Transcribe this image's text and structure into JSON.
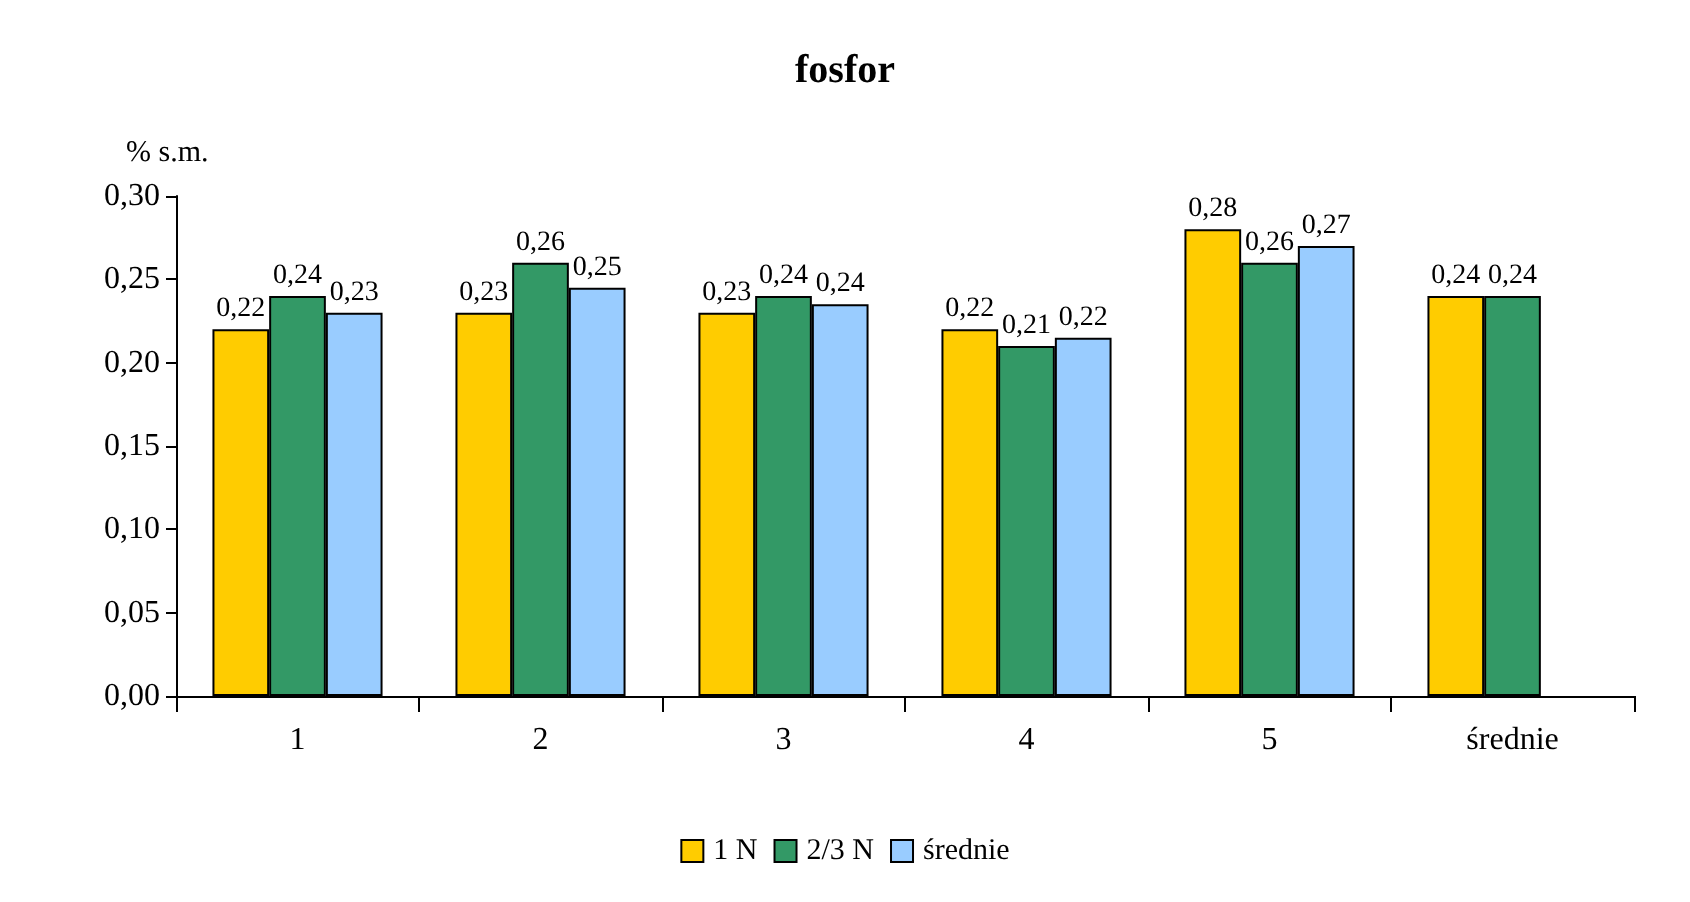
{
  "chart_data": {
    "type": "bar",
    "title": "fosfor",
    "ylabel": "% s.m.",
    "categories": [
      "1",
      "2",
      "3",
      "4",
      "5",
      "średnie"
    ],
    "series": [
      {
        "name": "1 N",
        "color": "#ffcc00",
        "values": [
          0.22,
          0.23,
          0.23,
          0.22,
          0.28,
          0.24
        ],
        "value_labels": [
          "0,22",
          "0,23",
          "0,23",
          "0,22",
          "0,28",
          "0,24"
        ]
      },
      {
        "name": "2/3 N",
        "color": "#339966",
        "values": [
          0.24,
          0.26,
          0.24,
          0.21,
          0.26,
          0.24
        ],
        "value_labels": [
          "0,24",
          "0,26",
          "0,24",
          "0,21",
          "0,26",
          "0,24"
        ]
      },
      {
        "name": "średnie",
        "color": "#99ccff",
        "values": [
          0.23,
          0.245,
          0.235,
          0.215,
          0.27,
          null
        ],
        "value_labels": [
          "0,23",
          "0,25",
          "0,24",
          "0,22",
          "0,27",
          null
        ]
      }
    ],
    "ylim": [
      0,
      0.3
    ],
    "yticks": [
      {
        "value": 0,
        "label": "0,00"
      },
      {
        "value": 0.05,
        "label": "0,05"
      },
      {
        "value": 0.1,
        "label": "0,10"
      },
      {
        "value": 0.15,
        "label": "0,15"
      },
      {
        "value": 0.2,
        "label": "0,20"
      },
      {
        "value": 0.25,
        "label": "0,25"
      },
      {
        "value": 0.3,
        "label": "0,30"
      }
    ],
    "grid": false,
    "legend": "bottom"
  }
}
